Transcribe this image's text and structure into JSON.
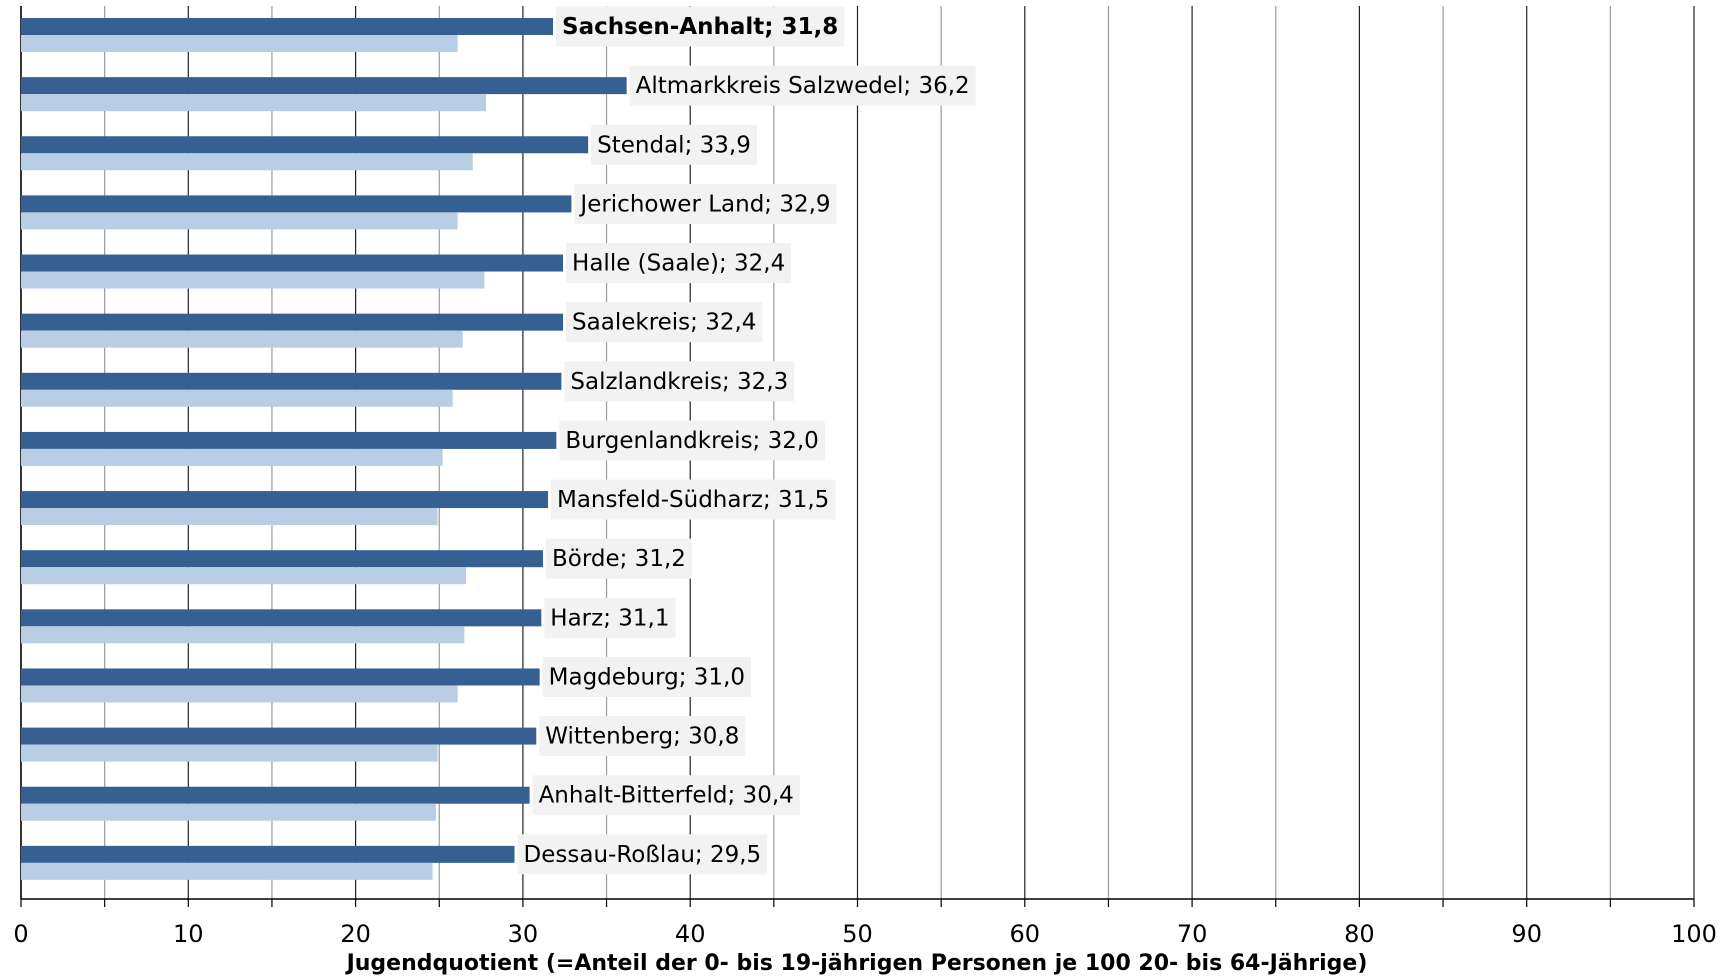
{
  "chart_data": {
    "type": "bar",
    "orientation": "horizontal",
    "x_label": "Jugendquotient (=Anteil der 0- bis 19-jährigen Personen je 100 20- bis 64-Jährige)",
    "series": [
      {
        "color": "#366092",
        "values": [
          31.8,
          36.2,
          33.9,
          32.9,
          32.4,
          32.4,
          32.3,
          32.0,
          31.5,
          31.2,
          31.1,
          31.0,
          30.8,
          30.4,
          29.5
        ],
        "value_labels": [
          "Sachsen-Anhalt; 31,8",
          "Altmarkkreis Salzwedel; 36,2",
          "Stendal; 33,9",
          "Jerichower Land; 32,9",
          "Halle (Saale); 32,4",
          "Saalekreis; 32,4",
          "Salzlandkreis; 32,3",
          "Burgenlandkreis; 32,0",
          "Mansfeld-Südharz; 31,5",
          "Börde; 31,2",
          "Harz; 31,1",
          "Magdeburg; 31,0",
          "Wittenberg; 30,8",
          "Anhalt-Bitterfeld; 30,4",
          "Dessau-Roßlau; 29,5"
        ]
      },
      {
        "color": "#b9cde5",
        "values": [
          26.1,
          27.8,
          27.0,
          26.1,
          27.7,
          26.4,
          25.8,
          25.2,
          24.9,
          26.6,
          26.5,
          26.1,
          24.9,
          24.8,
          24.6
        ]
      }
    ],
    "bold_label_index": 0,
    "xlim": [
      0,
      100
    ],
    "xticks": [
      0,
      10,
      20,
      30,
      40,
      50,
      60,
      70,
      80,
      90,
      100
    ],
    "xminorticks": [
      5,
      15,
      25,
      35,
      45,
      55,
      65,
      75,
      85,
      95
    ],
    "grid": true
  }
}
